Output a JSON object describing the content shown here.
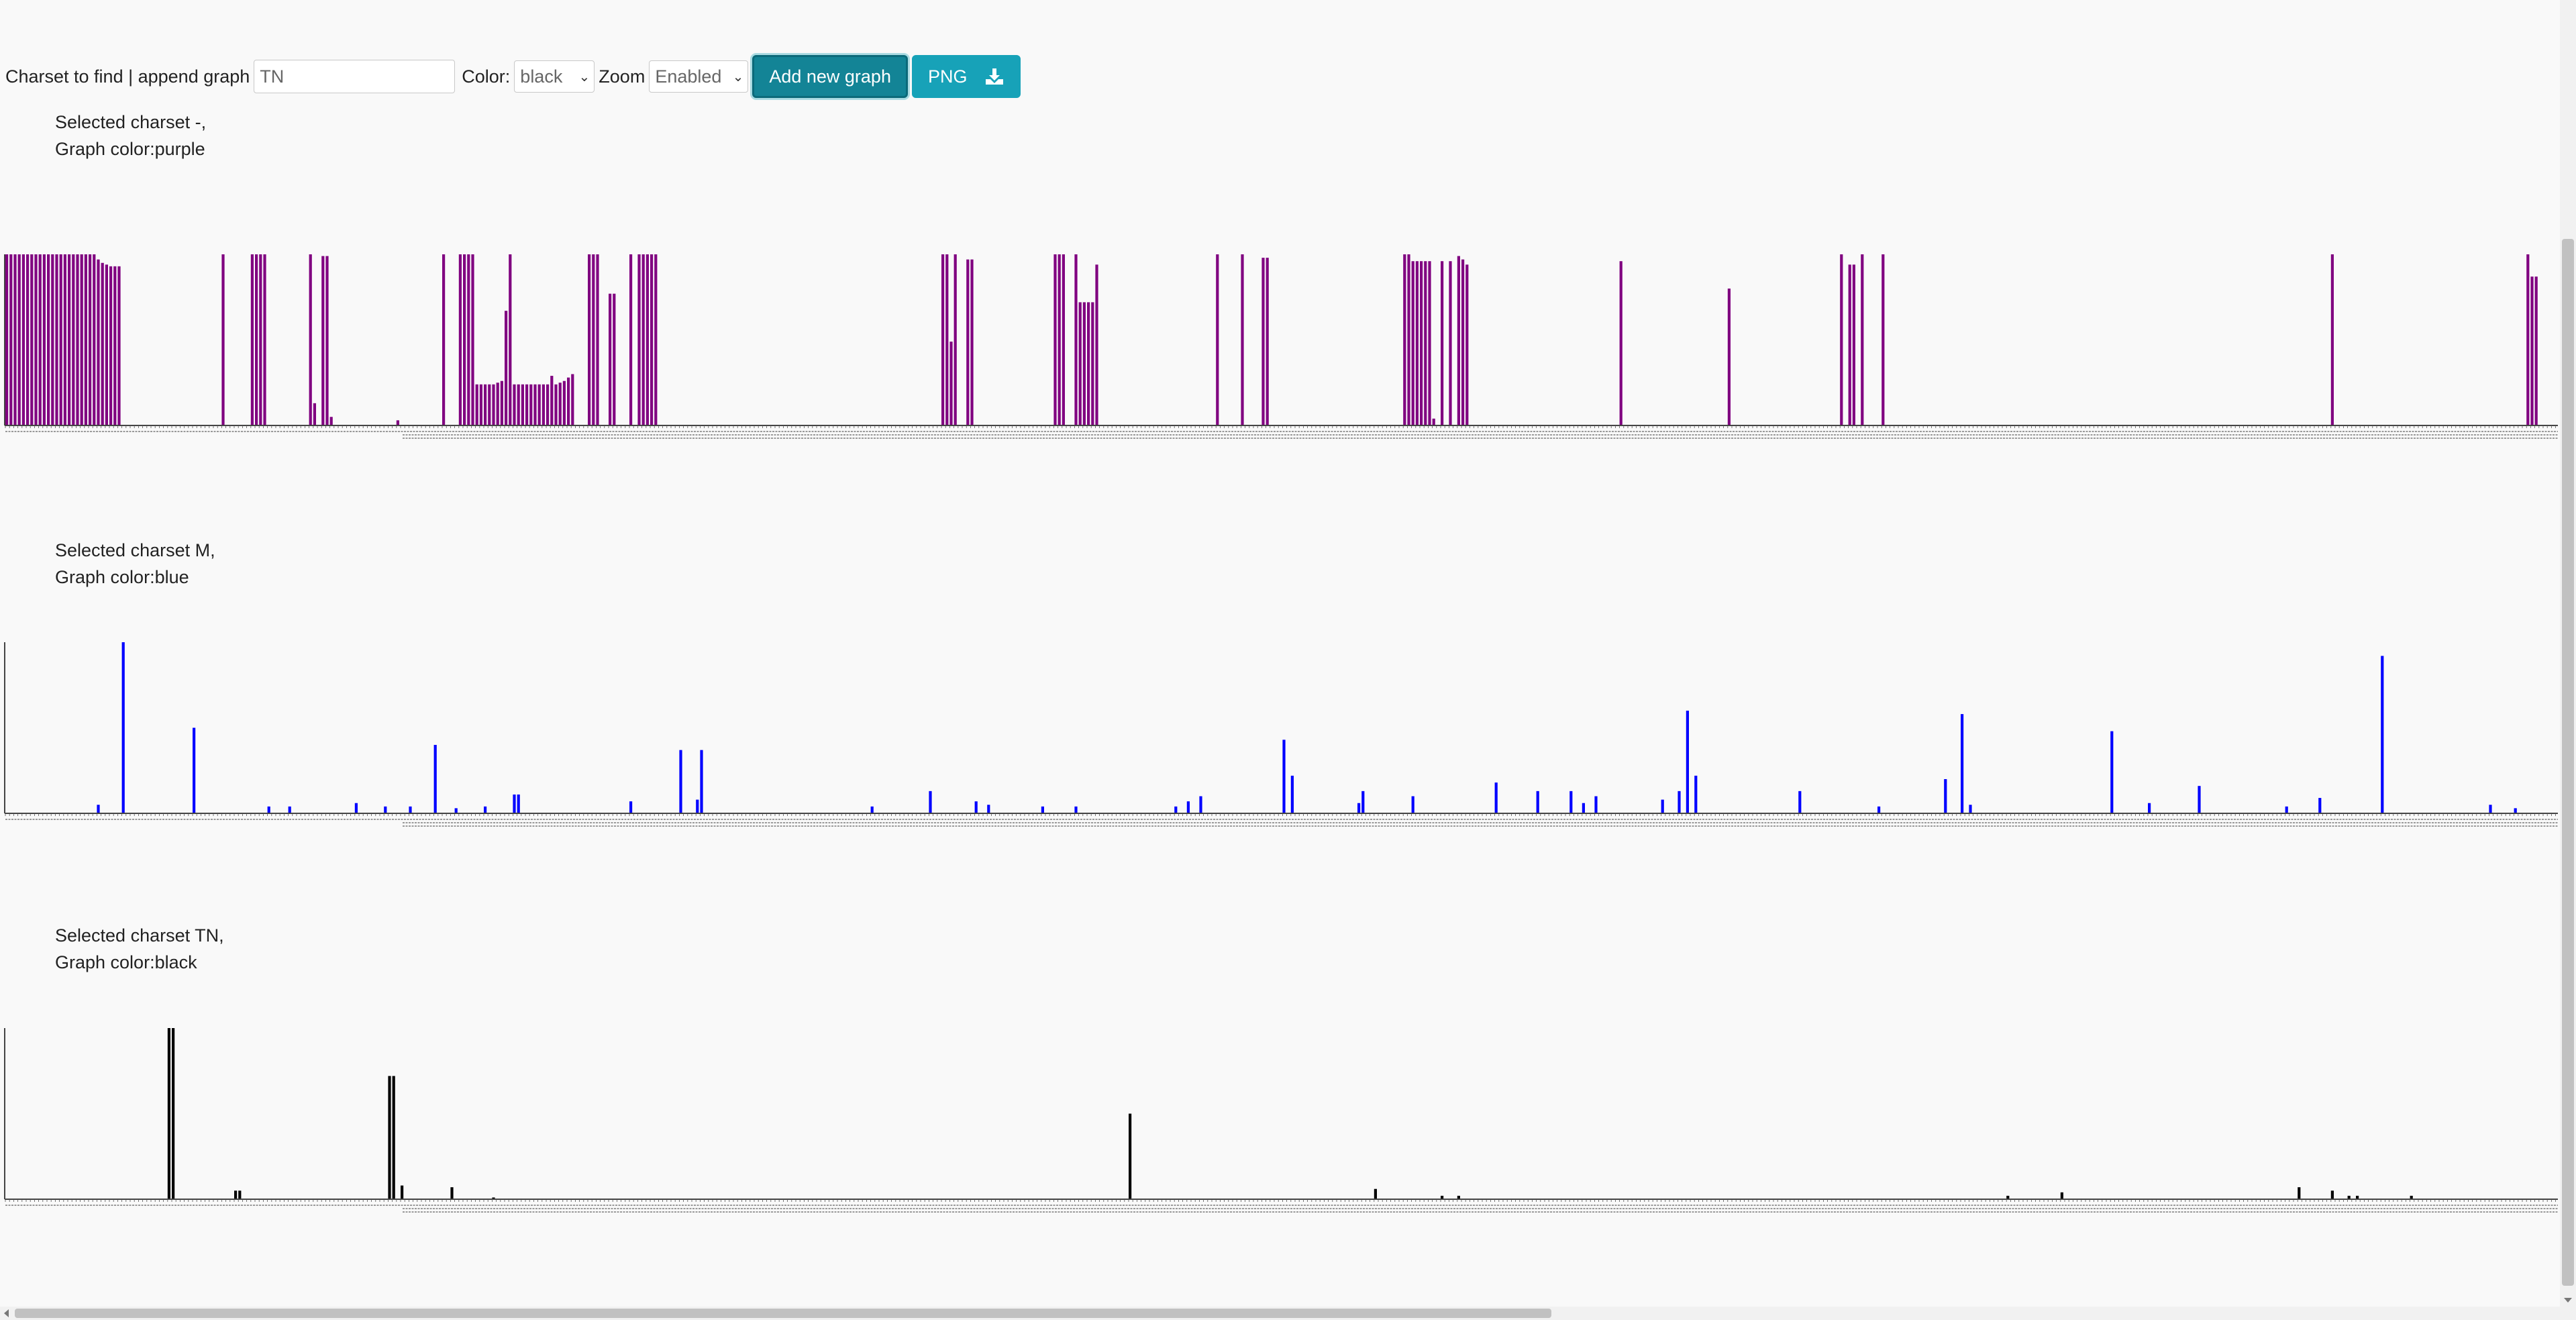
{
  "toolbar": {
    "charset_label": "Charset to find | append graph",
    "charset_value": "TN",
    "color_label": "Color:",
    "color_value": "black",
    "zoom_label": "Zoom",
    "zoom_value": "Enabled",
    "add_button": "Add new graph",
    "png_button": "PNG"
  },
  "graphs": [
    {
      "caption_line1": "Selected charset -,",
      "caption_line2": "Graph color:purple",
      "color": "#800080"
    },
    {
      "caption_line1": "Selected charset M,",
      "caption_line2": "Graph color:blue",
      "color": "#0000ff"
    },
    {
      "caption_line1": "Selected charset TN,",
      "caption_line2": "Graph color:black",
      "color": "#000000"
    }
  ],
  "chart_data": [
    {
      "type": "bar",
      "ylim": [
        0,
        100
      ],
      "values_by_position": {
        "bars": [
          [
            0,
            100
          ],
          [
            1,
            100
          ],
          [
            2,
            100
          ],
          [
            3,
            100
          ],
          [
            4,
            100
          ],
          [
            5,
            100
          ],
          [
            6,
            100
          ],
          [
            7,
            100
          ],
          [
            8,
            100
          ],
          [
            9,
            100
          ],
          [
            10,
            100
          ],
          [
            11,
            100
          ],
          [
            12,
            100
          ],
          [
            13,
            100
          ],
          [
            14,
            100
          ],
          [
            15,
            100
          ],
          [
            16,
            100
          ],
          [
            17,
            100
          ],
          [
            18,
            100
          ],
          [
            19,
            100
          ],
          [
            20,
            100
          ],
          [
            21,
            100
          ],
          [
            22,
            97
          ],
          [
            23,
            95
          ],
          [
            24,
            94
          ],
          [
            25,
            93
          ],
          [
            26,
            93
          ],
          [
            27,
            93
          ],
          [
            52,
            100
          ],
          [
            59,
            100
          ],
          [
            60,
            100
          ],
          [
            61,
            100
          ],
          [
            62,
            100
          ],
          [
            73,
            100
          ],
          [
            74,
            13
          ],
          [
            76,
            99
          ],
          [
            77,
            99
          ],
          [
            78,
            5
          ],
          [
            94,
            3
          ],
          [
            105,
            100
          ],
          [
            109,
            100
          ],
          [
            110,
            100
          ],
          [
            111,
            100
          ],
          [
            112,
            100
          ],
          [
            113,
            24
          ],
          [
            114,
            24
          ],
          [
            115,
            24
          ],
          [
            116,
            24
          ],
          [
            117,
            24
          ],
          [
            118,
            25
          ],
          [
            119,
            26
          ],
          [
            120,
            67
          ],
          [
            121,
            100
          ],
          [
            122,
            24
          ],
          [
            123,
            24
          ],
          [
            124,
            24
          ],
          [
            125,
            24
          ],
          [
            126,
            24
          ],
          [
            127,
            24
          ],
          [
            128,
            24
          ],
          [
            129,
            24
          ],
          [
            130,
            24
          ],
          [
            131,
            29
          ],
          [
            132,
            24
          ],
          [
            133,
            25
          ],
          [
            134,
            26
          ],
          [
            135,
            28
          ],
          [
            136,
            30
          ],
          [
            140,
            100
          ],
          [
            141,
            100
          ],
          [
            142,
            100
          ],
          [
            145,
            77
          ],
          [
            146,
            77
          ],
          [
            150,
            100
          ],
          [
            152,
            100
          ],
          [
            153,
            100
          ],
          [
            154,
            100
          ],
          [
            155,
            100
          ],
          [
            156,
            100
          ],
          [
            225,
            100
          ],
          [
            226,
            100
          ],
          [
            227,
            49
          ],
          [
            228,
            100
          ],
          [
            231,
            97
          ],
          [
            232,
            97
          ],
          [
            252,
            100
          ],
          [
            253,
            100
          ],
          [
            254,
            100
          ],
          [
            257,
            100
          ],
          [
            258,
            72
          ],
          [
            259,
            72
          ],
          [
            260,
            72
          ],
          [
            261,
            72
          ],
          [
            262,
            94
          ],
          [
            291,
            100
          ],
          [
            297,
            100
          ],
          [
            302,
            98
          ],
          [
            303,
            98
          ],
          [
            336,
            100
          ],
          [
            337,
            100
          ],
          [
            338,
            96
          ],
          [
            339,
            96
          ],
          [
            340,
            96
          ],
          [
            341,
            96
          ],
          [
            342,
            96
          ],
          [
            343,
            4
          ],
          [
            345,
            96
          ],
          [
            347,
            96
          ],
          [
            349,
            99
          ],
          [
            350,
            97
          ],
          [
            351,
            94
          ],
          [
            388,
            96
          ],
          [
            414,
            80
          ],
          [
            441,
            100
          ],
          [
            443,
            94
          ],
          [
            444,
            94
          ],
          [
            446,
            100
          ],
          [
            451,
            100
          ],
          [
            559,
            100
          ],
          [
            606,
            100
          ],
          [
            607,
            87
          ],
          [
            608,
            87
          ]
        ]
      }
    },
    {
      "type": "bar",
      "ylim": [
        0,
        100
      ],
      "values_by_position": {
        "bars": [
          [
            22,
            5
          ],
          [
            28,
            100
          ],
          [
            45,
            50
          ],
          [
            63,
            4
          ],
          [
            68,
            4
          ],
          [
            84,
            6
          ],
          [
            91,
            4
          ],
          [
            97,
            4
          ],
          [
            103,
            40
          ],
          [
            108,
            3
          ],
          [
            115,
            4
          ],
          [
            122,
            11
          ],
          [
            123,
            11
          ],
          [
            150,
            7
          ],
          [
            162,
            37
          ],
          [
            166,
            8
          ],
          [
            167,
            37
          ],
          [
            208,
            4
          ],
          [
            222,
            13
          ],
          [
            233,
            7
          ],
          [
            236,
            5
          ],
          [
            249,
            4
          ],
          [
            257,
            4
          ],
          [
            281,
            4
          ],
          [
            284,
            7
          ],
          [
            287,
            10
          ],
          [
            307,
            43
          ],
          [
            309,
            22
          ],
          [
            325,
            6
          ],
          [
            326,
            13
          ],
          [
            338,
            10
          ],
          [
            358,
            18
          ],
          [
            368,
            13
          ],
          [
            376,
            13
          ],
          [
            379,
            6
          ],
          [
            382,
            10
          ],
          [
            398,
            8
          ],
          [
            402,
            13
          ],
          [
            404,
            60
          ],
          [
            406,
            22
          ],
          [
            431,
            13
          ],
          [
            450,
            4
          ],
          [
            466,
            20
          ],
          [
            470,
            58
          ],
          [
            472,
            5
          ],
          [
            506,
            48
          ],
          [
            515,
            6
          ],
          [
            527,
            16
          ],
          [
            548,
            4
          ],
          [
            556,
            9
          ],
          [
            571,
            92
          ],
          [
            597,
            5
          ],
          [
            603,
            3
          ]
        ]
      }
    },
    {
      "type": "bar",
      "ylim": [
        0,
        100
      ],
      "values_by_position": {
        "bars": [
          [
            39,
            100
          ],
          [
            40,
            100
          ],
          [
            55,
            5
          ],
          [
            56,
            5
          ],
          [
            92,
            72
          ],
          [
            93,
            72
          ],
          [
            95,
            8
          ],
          [
            107,
            7
          ],
          [
            117,
            1
          ],
          [
            270,
            50
          ],
          [
            329,
            6
          ],
          [
            345,
            2
          ],
          [
            349,
            2
          ],
          [
            481,
            2
          ],
          [
            494,
            4
          ],
          [
            551,
            7
          ],
          [
            559,
            5
          ],
          [
            563,
            2
          ],
          [
            565,
            2
          ],
          [
            578,
            2
          ]
        ]
      }
    }
  ]
}
